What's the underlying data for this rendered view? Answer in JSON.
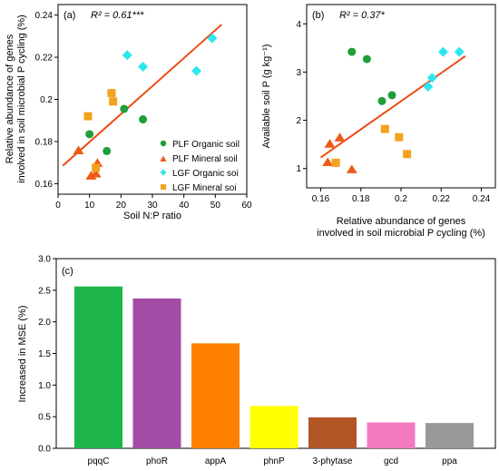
{
  "colors": {
    "plf_organic": "#1f9e3a",
    "plf_mineral": "#ee5a1a",
    "lgf_organic": "#2ee6ee",
    "lgf_mineral": "#f2a31e",
    "fit_line": "#ee4b14"
  },
  "chart_data": [
    {
      "type": "scatter",
      "panel_label": "(a)",
      "annotation": "R² = 0.61***",
      "xlabel": "Soil N:P ratio",
      "ylabel": "Relative abundance of genes involved in soil microbial P cycling (%)",
      "ylabel_lines": [
        "Relative abundance of genes",
        "involved in soil microbial P cycling (%)"
      ],
      "xlim": [
        0,
        60
      ],
      "ylim": [
        0.155,
        0.245
      ],
      "xticks": [
        0,
        10,
        20,
        30,
        40,
        50,
        60
      ],
      "yticks": [
        0.16,
        0.18,
        0.2,
        0.22,
        0.24
      ],
      "legend_position": "bottom-right",
      "fit_line": {
        "x": [
          1.5,
          52
        ],
        "y": [
          0.1685,
          0.2355
        ]
      },
      "series": [
        {
          "name": "PLF Organic soil",
          "marker": "circle",
          "color_key": "plf_organic",
          "x": [
            10,
            15.5,
            21,
            27
          ],
          "y": [
            0.1835,
            0.1755,
            0.1955,
            0.1905
          ]
        },
        {
          "name": "PLF Mineral soil",
          "marker": "triangle",
          "color_key": "plf_mineral",
          "x": [
            6.5,
            10.5,
            12,
            12.5
          ],
          "y": [
            0.1755,
            0.1635,
            0.1645,
            0.1695
          ]
        },
        {
          "name": "LGF Organic soi",
          "marker": "diamond",
          "color_key": "lgf_organic",
          "x": [
            22,
            27,
            44,
            49
          ],
          "y": [
            0.221,
            0.2155,
            0.2135,
            0.229
          ]
        },
        {
          "name": "LGF Mineral soi",
          "marker": "square",
          "color_key": "lgf_mineral",
          "x": [
            9.5,
            12,
            17,
            17.5
          ],
          "y": [
            0.192,
            0.1675,
            0.203,
            0.199
          ]
        }
      ]
    },
    {
      "type": "scatter",
      "panel_label": "(b)",
      "annotation": "R² = 0.37*",
      "xlabel": "Relative abundance of genes involved in soil microbial P cycling (%)",
      "xlabel_lines": [
        "Relative abundance of genes",
        "involved in soil microbial P cycling (%)"
      ],
      "ylabel": "Available soil P (g kg⁻¹)",
      "xlim": [
        0.153,
        0.247
      ],
      "ylim": [
        0.6,
        4.4
      ],
      "xticks": [
        0.16,
        0.18,
        0.2,
        0.22,
        0.24
      ],
      "yticks": [
        1,
        2,
        3,
        4
      ],
      "fit_line": {
        "x": [
          0.16,
          0.232
        ],
        "y": [
          1.23,
          3.33
        ]
      },
      "series": [
        {
          "name": "PLF Organic soil",
          "marker": "circle",
          "color_key": "plf_organic",
          "x": [
            0.1755,
            0.183,
            0.1905,
            0.1955
          ],
          "y": [
            3.42,
            3.27,
            2.4,
            2.52
          ]
        },
        {
          "name": "PLF Mineral soil",
          "marker": "triangle",
          "color_key": "plf_mineral",
          "x": [
            0.1635,
            0.1645,
            0.1695,
            0.1755
          ],
          "y": [
            1.12,
            1.5,
            1.63,
            0.97
          ]
        },
        {
          "name": "LGF Organic soi",
          "marker": "diamond",
          "color_key": "lgf_organic",
          "x": [
            0.2135,
            0.2155,
            0.221,
            0.229
          ],
          "y": [
            2.7,
            2.88,
            3.42,
            3.42
          ]
        },
        {
          "name": "LGF Mineral soi",
          "marker": "square",
          "color_key": "lgf_mineral",
          "x": [
            0.1675,
            0.192,
            0.199,
            0.203
          ],
          "y": [
            1.12,
            1.82,
            1.65,
            1.3
          ]
        }
      ]
    },
    {
      "type": "bar",
      "panel_label": "(c)",
      "xlabel": "",
      "ylabel": "Increased in MSE (%)",
      "ylim": [
        0,
        3.0
      ],
      "yticks": [
        "0.0",
        "0.5",
        "1.0",
        "1.5",
        "2.0",
        "2.5",
        "3.0"
      ],
      "categories": [
        "pqqC",
        "phoR",
        "appA",
        "phnP",
        "3-phytase",
        "gcd",
        "ppa"
      ],
      "values": [
        2.56,
        2.37,
        1.66,
        0.67,
        0.49,
        0.41,
        0.4
      ],
      "bar_colors": [
        "#1db54a",
        "#a34ca6",
        "#ff7f00",
        "#ffff00",
        "#b25525",
        "#f47ac0",
        "#999999"
      ]
    }
  ]
}
